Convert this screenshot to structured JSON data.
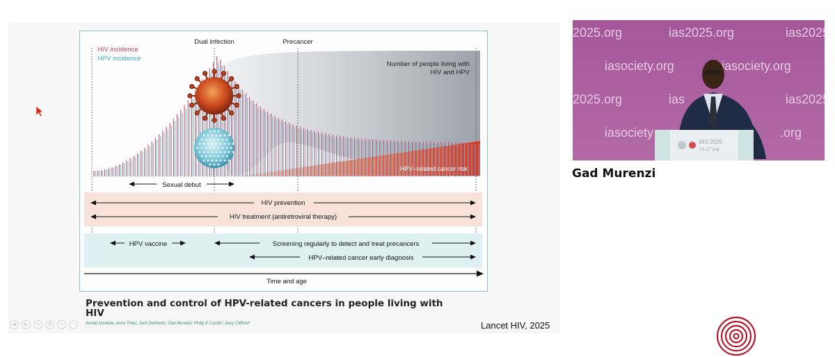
{
  "slide": {
    "legend": {
      "hiv": "HIV incidence",
      "hpv": "HPV incidence"
    },
    "top_labels": {
      "dual": "Dual infection",
      "precancer": "Precancer"
    },
    "people_label": [
      "Number of people living with",
      "HIV and  HPV"
    ],
    "cancer_risk_label": "HPV–related cancer risk",
    "sexual_debut": "Sexual debut",
    "hiv_prevention": "HIV prevention",
    "hiv_treatment": "HIV treatment (antiretroviral therapy)",
    "hpv_vaccine": "HPV vaccine",
    "screening": "Screening regularly to detect and treat precancers",
    "early_diagnosis": "HPV–related cancer early diagnosis",
    "time_axis": "Time and age",
    "caption": "Prevention and control of HPV-related cancers in people living with HIV",
    "authors": "Anneli Uusküla, Anna Tisler, Jack DeHovitz, Gad Murenzi, Philip E Castle*, Gary Clifford*",
    "journal": "Lancet HIV, 2025",
    "colors": {
      "hiv": "#c2405a",
      "hpv": "#5bb8cc",
      "cancer": "#e8452a",
      "band_pink": "#f8e2da",
      "band_blue": "#dff0f3"
    }
  },
  "video": {
    "backdrop_texts": [
      "2025.org",
      "ias2025.org",
      "ias2025",
      "iasociety.org",
      "iasociety.org",
      "2025.org",
      "ias",
      "ias2025",
      "iasociety",
      ".org"
    ],
    "podium_text": "IAS 2025",
    "podium_dates": "13–17 July"
  },
  "speaker": {
    "name": "Gad Murenzi"
  },
  "controls": [
    "◀",
    "▶",
    "✎",
    "⧉",
    "⌕",
    "⋯"
  ]
}
